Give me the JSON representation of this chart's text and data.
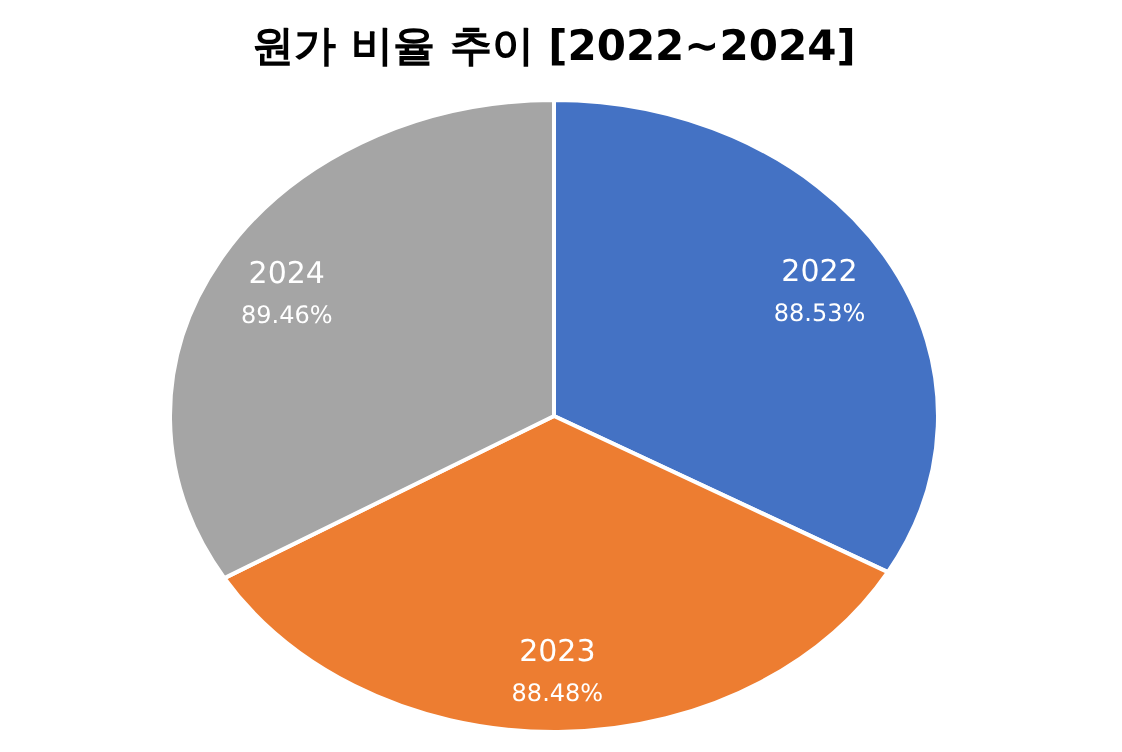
{
  "chart_data": {
    "type": "pie",
    "title": "원가 비율 추이 [2022~2024]",
    "categories": [
      "2022",
      "2023",
      "2024"
    ],
    "values": [
      88.53,
      88.48,
      89.46
    ],
    "value_labels": [
      "88.53%",
      "88.48%",
      "89.46%"
    ],
    "colors": [
      "#4472c4",
      "#ed7d31",
      "#a5a5a5"
    ],
    "legend": false
  }
}
